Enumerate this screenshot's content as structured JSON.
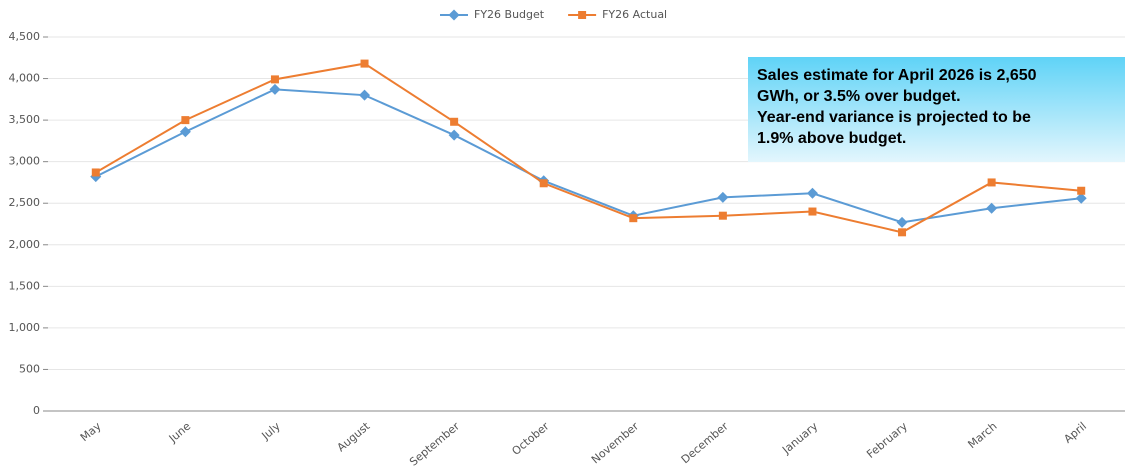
{
  "chart_data": {
    "type": "line",
    "categories": [
      "May",
      "June",
      "July",
      "August",
      "September",
      "October",
      "November",
      "December",
      "January",
      "February",
      "March",
      "April"
    ],
    "series": [
      {
        "name": "FY26 Budget",
        "color": "#5b9bd5",
        "marker": "diamond",
        "values": [
          2820,
          3360,
          3870,
          3800,
          3320,
          2770,
          2350,
          2570,
          2620,
          2270,
          2440,
          2560
        ]
      },
      {
        "name": "FY26 Actual",
        "color": "#ed7d31",
        "marker": "square",
        "values": [
          2870,
          3500,
          3990,
          4180,
          3480,
          2740,
          2320,
          2350,
          2400,
          2150,
          2750,
          2650
        ]
      }
    ],
    "ylim": [
      0,
      4500
    ],
    "yticks": [
      0,
      500,
      {
        "value": 1000,
        "label": "1,000"
      },
      {
        "value": 1500,
        "label": "1,500"
      },
      {
        "value": 2000,
        "label": "2,000"
      },
      {
        "value": 2500,
        "label": "2,500"
      },
      {
        "value": 3000,
        "label": "3,000"
      },
      {
        "value": 3500,
        "label": "3,500"
      },
      {
        "value": 4000,
        "label": "4,000"
      },
      {
        "value": 4500,
        "label": "4,500"
      }
    ],
    "grid": true,
    "legend": "top",
    "annotation": [
      "Sales estimate for April 2026 is 2,650",
      "GWh, or 3.5% over budget.",
      "Year-end variance is projected to be",
      "1.9% above budget."
    ]
  }
}
